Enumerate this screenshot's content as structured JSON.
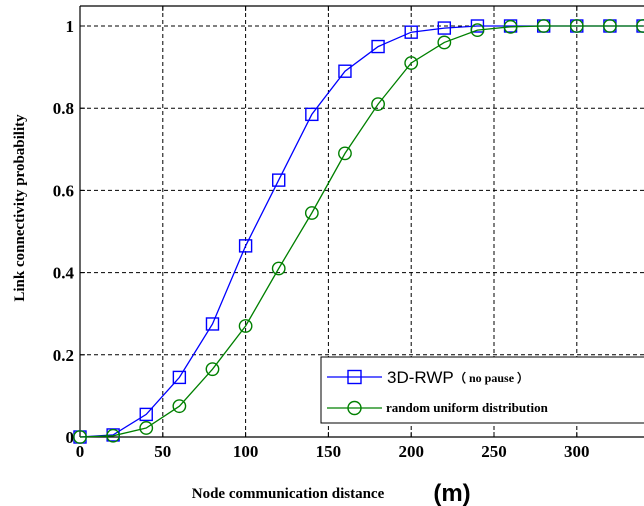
{
  "chart_data": {
    "type": "line",
    "title": "",
    "xlabel": "Node communication distance",
    "xlabel_unit": "(m)",
    "ylabel": "Link connectivity probability",
    "xlim": [
      0,
      340
    ],
    "ylim": [
      0,
      1.05
    ],
    "xticks": [
      0,
      50,
      100,
      150,
      200,
      250,
      300
    ],
    "xtick_labels": [
      "0",
      "50",
      "100",
      "150",
      "200",
      "250",
      "300"
    ],
    "yticks": [
      0,
      0.2,
      0.4,
      0.6,
      0.8,
      1
    ],
    "ytick_labels": [
      "0",
      "0.2",
      "0.4",
      "0.6",
      "0.8",
      "1"
    ],
    "grid": true,
    "legend_position": "bottom-right",
    "x": [
      0,
      20,
      40,
      60,
      80,
      100,
      120,
      140,
      160,
      180,
      200,
      220,
      240,
      260,
      280,
      300,
      320,
      340
    ],
    "series": [
      {
        "name": "3D-RWP",
        "name_suffix": "（ no pause ）",
        "color": "#0000ff",
        "marker": "square",
        "values": [
          0,
          0.005,
          0.055,
          0.145,
          0.275,
          0.465,
          0.625,
          0.785,
          0.89,
          0.95,
          0.985,
          0.995,
          1.0,
          1.0,
          1.0,
          1.0,
          1.0,
          1.0
        ]
      },
      {
        "name": "random uniform  distribution",
        "color": "#008000",
        "marker": "circle",
        "values": [
          0,
          0.003,
          0.022,
          0.075,
          0.165,
          0.27,
          0.41,
          0.545,
          0.69,
          0.81,
          0.91,
          0.96,
          0.99,
          0.998,
          1.0,
          1.0,
          1.0,
          1.0
        ]
      }
    ]
  }
}
